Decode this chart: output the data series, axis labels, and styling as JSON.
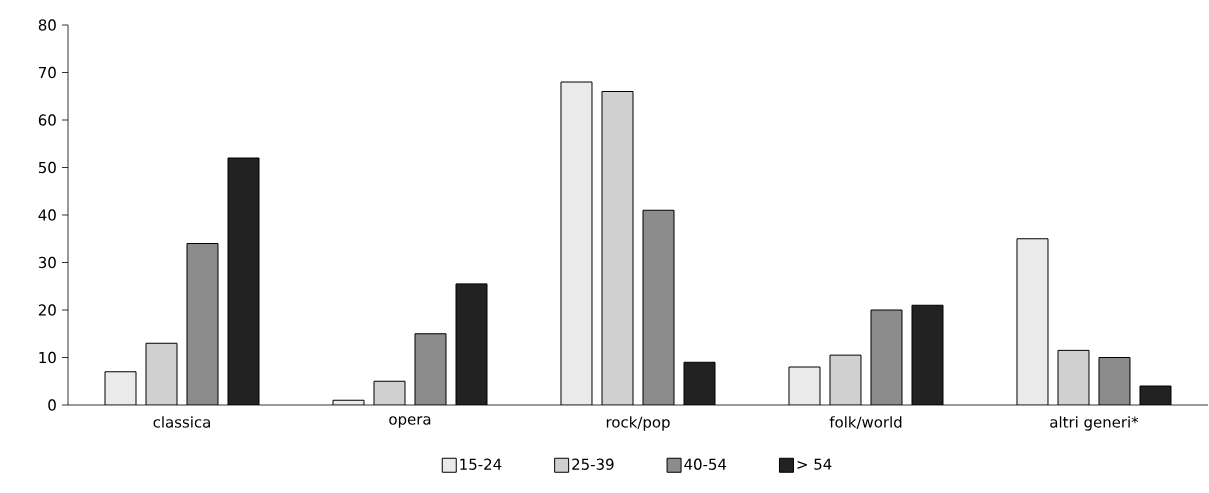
{
  "chart_data": {
    "type": "bar",
    "categories": [
      "classica",
      "opera",
      "rock/pop",
      "folk/world",
      "altri generi*"
    ],
    "series": [
      {
        "name": "15-24",
        "color": "#eaeaea",
        "values": [
          7,
          1,
          68,
          8,
          35
        ]
      },
      {
        "name": "25-39",
        "color": "#d0d0d0",
        "values": [
          13,
          5,
          66,
          10.5,
          11.5
        ]
      },
      {
        "name": "40-54",
        "color": "#8c8c8c",
        "values": [
          34,
          15,
          41,
          20,
          10
        ]
      },
      {
        "name": "> 54",
        "color": "#222222",
        "values": [
          52,
          25.5,
          9,
          21,
          4
        ]
      }
    ],
    "ylim": [
      0,
      80
    ],
    "yticks": [
      0,
      10,
      20,
      30,
      40,
      50,
      60,
      70,
      80
    ],
    "legend": "bottom",
    "grid": false
  }
}
